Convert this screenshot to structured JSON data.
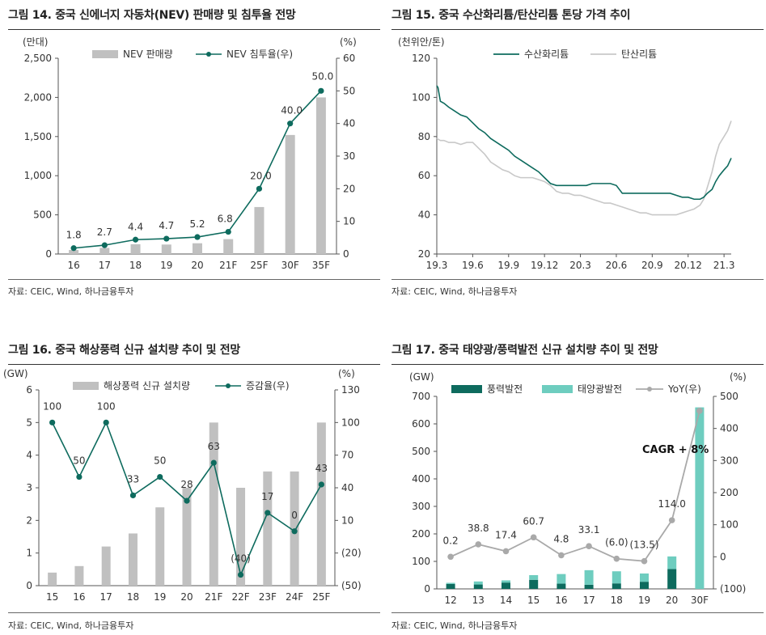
{
  "charts": [
    {
      "title": "그림 14. 중국 신에너지 자동차(NEV) 판매량 및 침투율 전망",
      "source": "자료: CEIC, Wind, 하나금융투자",
      "chart_data": {
        "type": "bar+line",
        "left_unit": "(만대)",
        "right_unit": "(%)",
        "categories": [
          "16",
          "17",
          "18",
          "19",
          "20",
          "21F",
          "25F",
          "30F",
          "35F"
        ],
        "left_ylim": [
          0,
          2500
        ],
        "left_ticks": [
          "0",
          "500",
          "1,000",
          "1,500",
          "2,000",
          "2,500"
        ],
        "right_ylim": [
          0,
          60
        ],
        "right_ticks": [
          "0",
          "10",
          "20",
          "30",
          "40",
          "50",
          "60"
        ],
        "bars": {
          "name": "NEV 판매량",
          "values": [
            51,
            78,
            125,
            121,
            137,
            190,
            600,
            1520,
            2000
          ]
        },
        "line": {
          "name": "NEV 침투율(우)",
          "values": [
            1.8,
            2.7,
            4.4,
            4.7,
            5.2,
            6.8,
            20.0,
            40.0,
            50.0
          ],
          "labels": [
            "1.8",
            "2.7",
            "4.4",
            "4.7",
            "5.2",
            "6.8",
            "20.0",
            "40.0",
            "50.0"
          ]
        }
      }
    },
    {
      "title": "그림 15. 중국 수산화리튬/탄산리튬 톤당 가격 추이",
      "source": "자료: CEIC, Wind, 하나금융투자",
      "chart_data": {
        "type": "line",
        "left_unit": "(천위안/톤)",
        "ylim": [
          20,
          120
        ],
        "yticks": [
          "20",
          "40",
          "60",
          "80",
          "100",
          "120"
        ],
        "x_tick_labels": [
          "19.3",
          "19.6",
          "19.9",
          "19.12",
          "20.3",
          "20.6",
          "20.9",
          "20.12",
          "21.3"
        ],
        "x_tick_index": [
          0,
          3,
          6,
          9,
          12,
          15,
          18,
          21,
          24
        ],
        "x_range": [
          0,
          24.6
        ],
        "series": [
          {
            "name": "수산화리튬",
            "color": "#0e6b5e",
            "x": [
              0,
              0.1,
              0.3,
              0.6,
              1,
              1.5,
              2,
              2.5,
              3,
              3.5,
              4,
              4.5,
              5,
              5.5,
              6,
              6.5,
              7,
              7.5,
              8,
              8.5,
              9,
              9.5,
              10,
              10.5,
              11,
              11.5,
              12,
              12.5,
              13,
              13.5,
              14,
              14.5,
              15,
              15.5,
              16,
              16.5,
              17,
              17.5,
              18,
              18.5,
              19,
              19.5,
              20,
              20.5,
              21,
              21.5,
              22,
              22.3,
              22.6,
              23,
              23.3,
              23.6,
              24,
              24.3,
              24.6
            ],
            "y": [
              106,
              105,
              98,
              97,
              95,
              93,
              91,
              90,
              87,
              84,
              82,
              79,
              77,
              75,
              73,
              70,
              68,
              66,
              64,
              62,
              59,
              56,
              55,
              55,
              55,
              55,
              55,
              55,
              56,
              56,
              56,
              56,
              55,
              51,
              51,
              51,
              51,
              51,
              51,
              51,
              51,
              51,
              50,
              49,
              49,
              48,
              48,
              49,
              51,
              53,
              57,
              60,
              63,
              65,
              69
            ]
          },
          {
            "name": "탄산리튬",
            "color": "#c8c8c8",
            "x": [
              0,
              0.3,
              0.6,
              1,
              1.5,
              2,
              2.5,
              3,
              3.5,
              4,
              4.5,
              5,
              5.5,
              6,
              6.5,
              7,
              7.5,
              8,
              8.5,
              9,
              9.5,
              10,
              10.5,
              11,
              11.5,
              12,
              12.5,
              13,
              13.5,
              14,
              14.5,
              15,
              15.5,
              16,
              16.5,
              17,
              17.5,
              18,
              18.5,
              19,
              19.5,
              20,
              20.5,
              21,
              21.5,
              22,
              22.3,
              22.6,
              23,
              23.3,
              23.6,
              24,
              24.3,
              24.6
            ],
            "y": [
              79,
              78,
              78,
              77,
              77,
              76,
              77,
              77,
              74,
              71,
              67,
              65,
              63,
              62,
              60,
              59,
              59,
              59,
              58,
              57,
              55,
              52,
              51,
              51,
              50,
              50,
              49,
              48,
              47,
              46,
              46,
              45,
              44,
              43,
              42,
              41,
              41,
              40,
              40,
              40,
              40,
              40,
              41,
              42,
              43,
              45,
              48,
              54,
              62,
              70,
              76,
              80,
              83,
              88
            ]
          }
        ]
      }
    },
    {
      "title": "그림 16. 중국 해상풍력 신규 설치량 추이 및 전망",
      "source": "자료: CEIC, Wind, 하나금융투자",
      "chart_data": {
        "type": "bar+line",
        "left_unit": "(GW)",
        "right_unit": "(%)",
        "categories": [
          "15",
          "16",
          "17",
          "18",
          "19",
          "20",
          "21F",
          "22F",
          "23F",
          "24F",
          "25F"
        ],
        "left_ylim": [
          0,
          6
        ],
        "left_ticks": [
          "0",
          "1",
          "2",
          "3",
          "4",
          "5",
          "6"
        ],
        "right_ylim": [
          -50,
          130
        ],
        "right_ticks": [
          "(50)",
          "(20)",
          "10",
          "40",
          "70",
          "100",
          "130"
        ],
        "bars": {
          "name": "해상풍력 신규 설치량",
          "values": [
            0.4,
            0.6,
            1.2,
            1.6,
            2.4,
            3.0,
            5.0,
            3.0,
            3.5,
            3.5,
            5.0
          ]
        },
        "line": {
          "name": "증감율(우)",
          "values": [
            100,
            50,
            100,
            33,
            50,
            28,
            63,
            -40,
            17,
            0,
            43
          ],
          "labels": [
            "100",
            "50",
            "100",
            "33",
            "50",
            "28",
            "63",
            "(40)",
            "17",
            "0",
            "43"
          ]
        }
      }
    },
    {
      "title": "그림 17. 중국 태양광/풍력발전 신규 설치량 추이 및 전망",
      "source": "자료: CEIC, Wind, 하나금융투자",
      "annotation": "CAGR + 8%",
      "chart_data": {
        "type": "stacked-bar+line",
        "left_unit": "(GW)",
        "right_unit": "(%)",
        "categories": [
          "12",
          "13",
          "14",
          "15",
          "16",
          "17",
          "18",
          "19",
          "20",
          "30F"
        ],
        "left_ylim": [
          0,
          700
        ],
        "left_ticks": [
          "0",
          "100",
          "200",
          "300",
          "400",
          "500",
          "600",
          "700"
        ],
        "right_ylim": [
          -100,
          500
        ],
        "right_ticks": [
          "(100)",
          "0",
          "100",
          "200",
          "300",
          "400",
          "500"
        ],
        "series": [
          {
            "name": "풍력발전",
            "color": "#0e6b5e",
            "values": [
              18,
              16,
              23,
              33,
              19,
              15,
              20,
              26,
              72,
              0
            ]
          },
          {
            "name": "태양광발전",
            "color": "#6ecdbf",
            "values": [
              4,
              11,
              8,
              17,
              35,
              53,
              44,
              30,
              46,
              660
            ]
          }
        ],
        "line": {
          "name": "YoY(우)",
          "values": [
            0.2,
            38.8,
            17.4,
            60.7,
            4.8,
            33.1,
            -6.0,
            -13.5,
            114.0,
            455
          ],
          "labels": [
            "0.2",
            "38.8",
            "17.4",
            "60.7",
            "4.8",
            "33.1",
            "(6.0)",
            "(13.5)",
            "114.0",
            ""
          ]
        }
      }
    }
  ]
}
